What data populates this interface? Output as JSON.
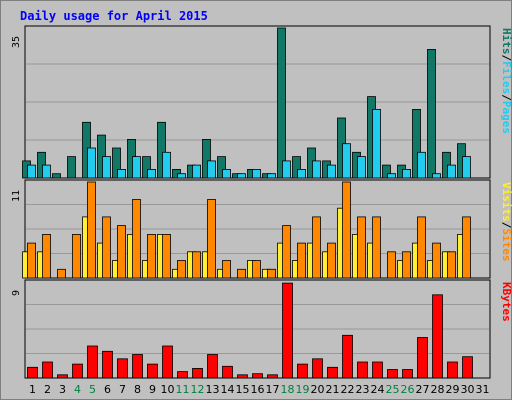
{
  "colors": {
    "background": "#c0c0c0",
    "border": "#7f7f7f",
    "grid": "#999999",
    "title": "#0000ff",
    "pages": "#117766",
    "files": "#22ccee",
    "hits": "#117766",
    "sites": "#ff8800",
    "visits": "#ffee33",
    "kbytes": "#ff0000",
    "weekend": "#008040",
    "weekday": "#000000"
  },
  "chart_data": {
    "type": "bar",
    "title": "Daily usage for April 2015",
    "categories": [
      "1",
      "2",
      "3",
      "4",
      "5",
      "6",
      "7",
      "8",
      "9",
      "10",
      "11",
      "12",
      "13",
      "14",
      "15",
      "16",
      "17",
      "18",
      "19",
      "20",
      "21",
      "22",
      "23",
      "24",
      "25",
      "26",
      "27",
      "28",
      "29",
      "30",
      "31"
    ],
    "weekend_days": [
      4,
      5,
      11,
      12,
      18,
      19,
      25,
      26
    ],
    "grid": true,
    "panels": [
      {
        "name": "hits-files-pages",
        "ymax_label": "35",
        "ylim": [
          0,
          35
        ],
        "right_labels": [
          {
            "text": "Hits",
            "color": "#117766"
          },
          {
            "text": "/",
            "color": "#000000"
          },
          {
            "text": "Files",
            "color": "#22ccee"
          },
          {
            "text": "/",
            "color": "#000000"
          },
          {
            "text": "Pages",
            "color": "#22ccee"
          }
        ],
        "series": [
          {
            "name": "Hits",
            "color": "#117766",
            "values": [
              4,
              6,
              1,
              5,
              13,
              10,
              7,
              9,
              5,
              13,
              2,
              3,
              9,
              5,
              1,
              2,
              1,
              35,
              5,
              7,
              4,
              14,
              6,
              19,
              3,
              3,
              16,
              30,
              6,
              8,
              0
            ]
          },
          {
            "name": "Files",
            "color": "#22ccee",
            "values": [
              3,
              3,
              0,
              0,
              7,
              5,
              2,
              5,
              2,
              6,
              1,
              3,
              4,
              2,
              1,
              2,
              1,
              4,
              2,
              4,
              3,
              8,
              5,
              16,
              1,
              2,
              6,
              1,
              3,
              5,
              0
            ]
          }
        ]
      },
      {
        "name": "visits-sites",
        "ymax_label": "11",
        "ylim": [
          0,
          11
        ],
        "right_labels": [
          {
            "text": "Visits",
            "color": "#ffee33"
          },
          {
            "text": "/",
            "color": "#000000"
          },
          {
            "text": "Sites",
            "color": "#ff8800"
          }
        ],
        "series": [
          {
            "name": "Visits",
            "color": "#ffee33",
            "values": [
              3,
              3,
              0,
              0,
              7,
              4,
              2,
              5,
              2,
              5,
              1,
              3,
              3,
              1,
              0,
              2,
              1,
              4,
              2,
              4,
              3,
              8,
              5,
              4,
              0,
              2,
              4,
              2,
              3,
              5,
              0
            ]
          },
          {
            "name": "Sites",
            "color": "#ff8800",
            "values": [
              4,
              5,
              1,
              5,
              11,
              7,
              6,
              9,
              5,
              5,
              2,
              3,
              9,
              2,
              1,
              2,
              1,
              6,
              4,
              7,
              4,
              11,
              7,
              7,
              3,
              3,
              7,
              4,
              3,
              7,
              0
            ]
          }
        ]
      },
      {
        "name": "kbytes",
        "ymax_label": "9",
        "ylim": [
          0,
          9
        ],
        "right_labels": [
          {
            "text": "KBytes",
            "color": "#ff0000"
          }
        ],
        "series": [
          {
            "name": "KBytes",
            "color": "#ff0000",
            "values": [
              1,
              1.5,
              0.3,
              1.3,
              3,
              2.5,
              1.8,
              2.2,
              1.3,
              3,
              0.6,
              0.9,
              2.2,
              1.1,
              0.3,
              0.4,
              0.3,
              8.9,
              1.3,
              1.8,
              1,
              4,
              1.5,
              1.5,
              0.8,
              0.8,
              3.8,
              7.8,
              1.5,
              2,
              0
            ]
          }
        ]
      }
    ]
  }
}
